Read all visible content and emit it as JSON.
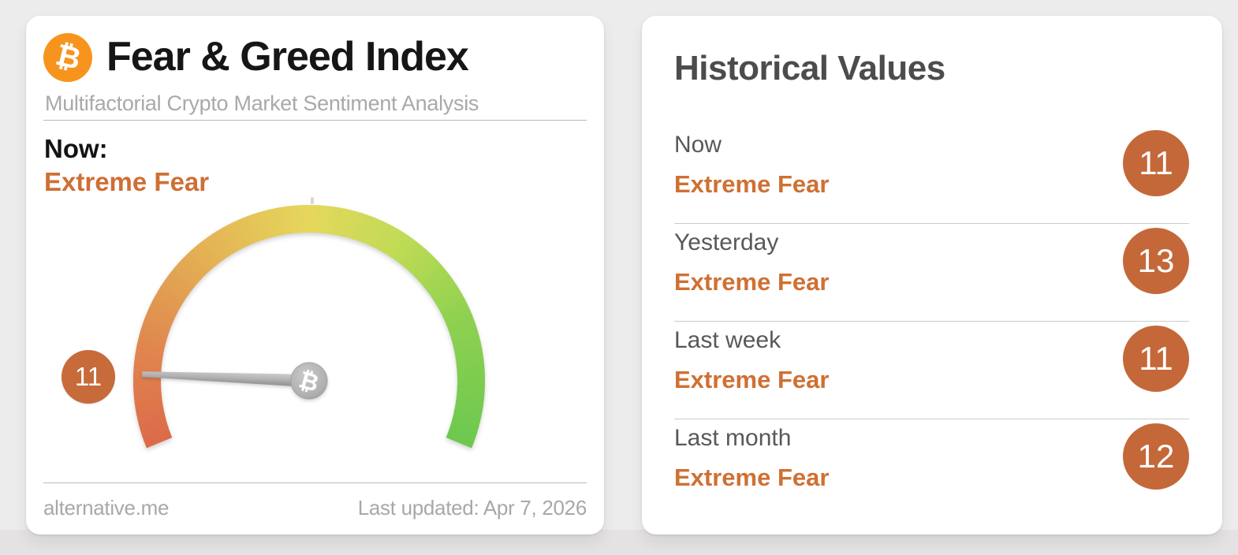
{
  "left_card": {
    "title": "Fear & Greed Index",
    "subtitle": "Multifactorial Crypto Market Sentiment Analysis",
    "now_label": "Now:",
    "now_value": "Extreme Fear",
    "gauge_value_label": "11",
    "bitcoin_symbol": "₿",
    "footer_left": "alternative.me",
    "footer_right": "Last updated: Apr 7, 2026"
  },
  "right_card": {
    "title": "Historical Values",
    "rows": [
      {
        "label": "Now",
        "classification": "Extreme Fear",
        "value": 11
      },
      {
        "label": "Yesterday",
        "classification": "Extreme Fear",
        "value": 13
      },
      {
        "label": "Last week",
        "classification": "Extreme Fear",
        "value": 11
      },
      {
        "label": "Last month",
        "classification": "Extreme Fear",
        "value": 12
      }
    ]
  },
  "colors": {
    "accent_orange": "#cf7033",
    "badge_orange": "#c4683a",
    "bitcoin_orange": "#f7941e",
    "gauge_red": "#dc6a4a",
    "gauge_yellow": "#e6d75c",
    "gauge_green": "#6dc84f",
    "needle_gray": "#a8a8a8"
  },
  "chart_data": {
    "type": "gauge",
    "title": "Fear & Greed Index",
    "subtitle": "Multifactorial Crypto Market Sentiment Analysis",
    "value": 11,
    "min": 0,
    "max": 100,
    "classification": "Extreme Fear",
    "last_updated": "Apr 7, 2026",
    "source": "alternative.me",
    "start_angle_deg": 202.5,
    "sweep_deg": 225,
    "color_stops": [
      {
        "pos": 0.0,
        "color": "#dc6a4a"
      },
      {
        "pos": 0.15,
        "color": "#e0854f"
      },
      {
        "pos": 0.3,
        "color": "#e3ab53"
      },
      {
        "pos": 0.5,
        "color": "#e6d75c"
      },
      {
        "pos": 0.65,
        "color": "#c0db55"
      },
      {
        "pos": 0.8,
        "color": "#8fd151"
      },
      {
        "pos": 1.0,
        "color": "#6dc84f"
      }
    ],
    "historical": [
      {
        "label": "Now",
        "classification": "Extreme Fear",
        "value": 11
      },
      {
        "label": "Yesterday",
        "classification": "Extreme Fear",
        "value": 13
      },
      {
        "label": "Last week",
        "classification": "Extreme Fear",
        "value": 11
      },
      {
        "label": "Last month",
        "classification": "Extreme Fear",
        "value": 12
      }
    ]
  }
}
